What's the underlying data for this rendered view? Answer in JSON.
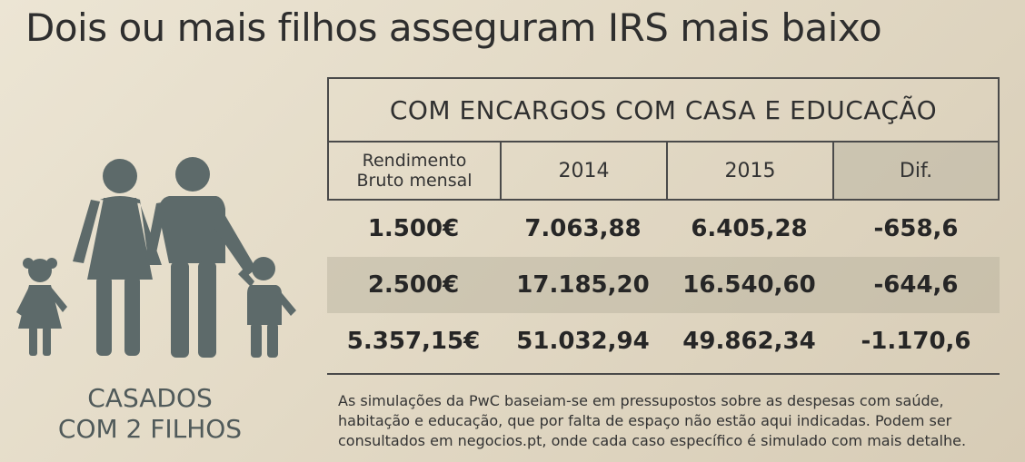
{
  "headline": "Dois ou mais filhos asseguram IRS mais baixo",
  "table": {
    "title": "COM ENCARGOS COM CASA E EDUCAÇÃO",
    "columns": {
      "income_line1": "Rendimento",
      "income_line2": "Bruto mensal",
      "year1": "2014",
      "year2": "2015",
      "diff": "Dif."
    },
    "rows": [
      {
        "income": "1.500€",
        "y2014": "7.063,88",
        "y2015": "6.405,28",
        "diff": "-658,6"
      },
      {
        "income": "2.500€",
        "y2014": "17.185,20",
        "y2015": "16.540,60",
        "diff": "-644,6"
      },
      {
        "income": "5.357,15€",
        "y2014": "51.032,94",
        "y2015": "49.862,34",
        "diff": "-1.170,6"
      }
    ]
  },
  "caption": {
    "line1": "CASADOS",
    "line2": "COM 2 FILHOS"
  },
  "illustration": {
    "icon": "family-icon",
    "color": "#5d6a6a"
  },
  "footnote": {
    "line1": "As simulações da PwC baseiam-se em pressupostos sobre as despesas com saúde,",
    "line2": "habitação e educação, que por falta de espaço não estão aqui indicadas. Podem ser",
    "line3": "consultados em negocios.pt, onde cada caso específico é simulado com mais detalhe."
  }
}
